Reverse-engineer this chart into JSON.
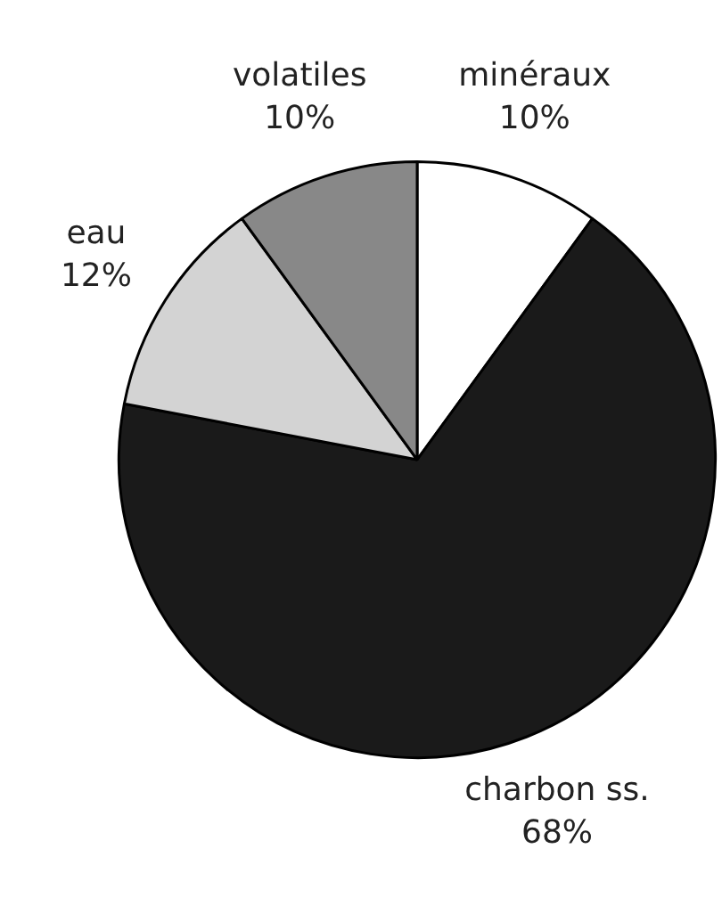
{
  "chart_data": {
    "type": "pie",
    "categories": [
      "minéraux",
      "charbon ss.",
      "eau",
      "volatiles"
    ],
    "values": [
      10,
      68,
      12,
      10
    ],
    "value_labels": [
      "10%",
      "68%",
      "12%",
      "10%"
    ],
    "colors": [
      "#ffffff",
      "#1a1a1a",
      "#d3d3d3",
      "#888888"
    ],
    "legend": false
  }
}
